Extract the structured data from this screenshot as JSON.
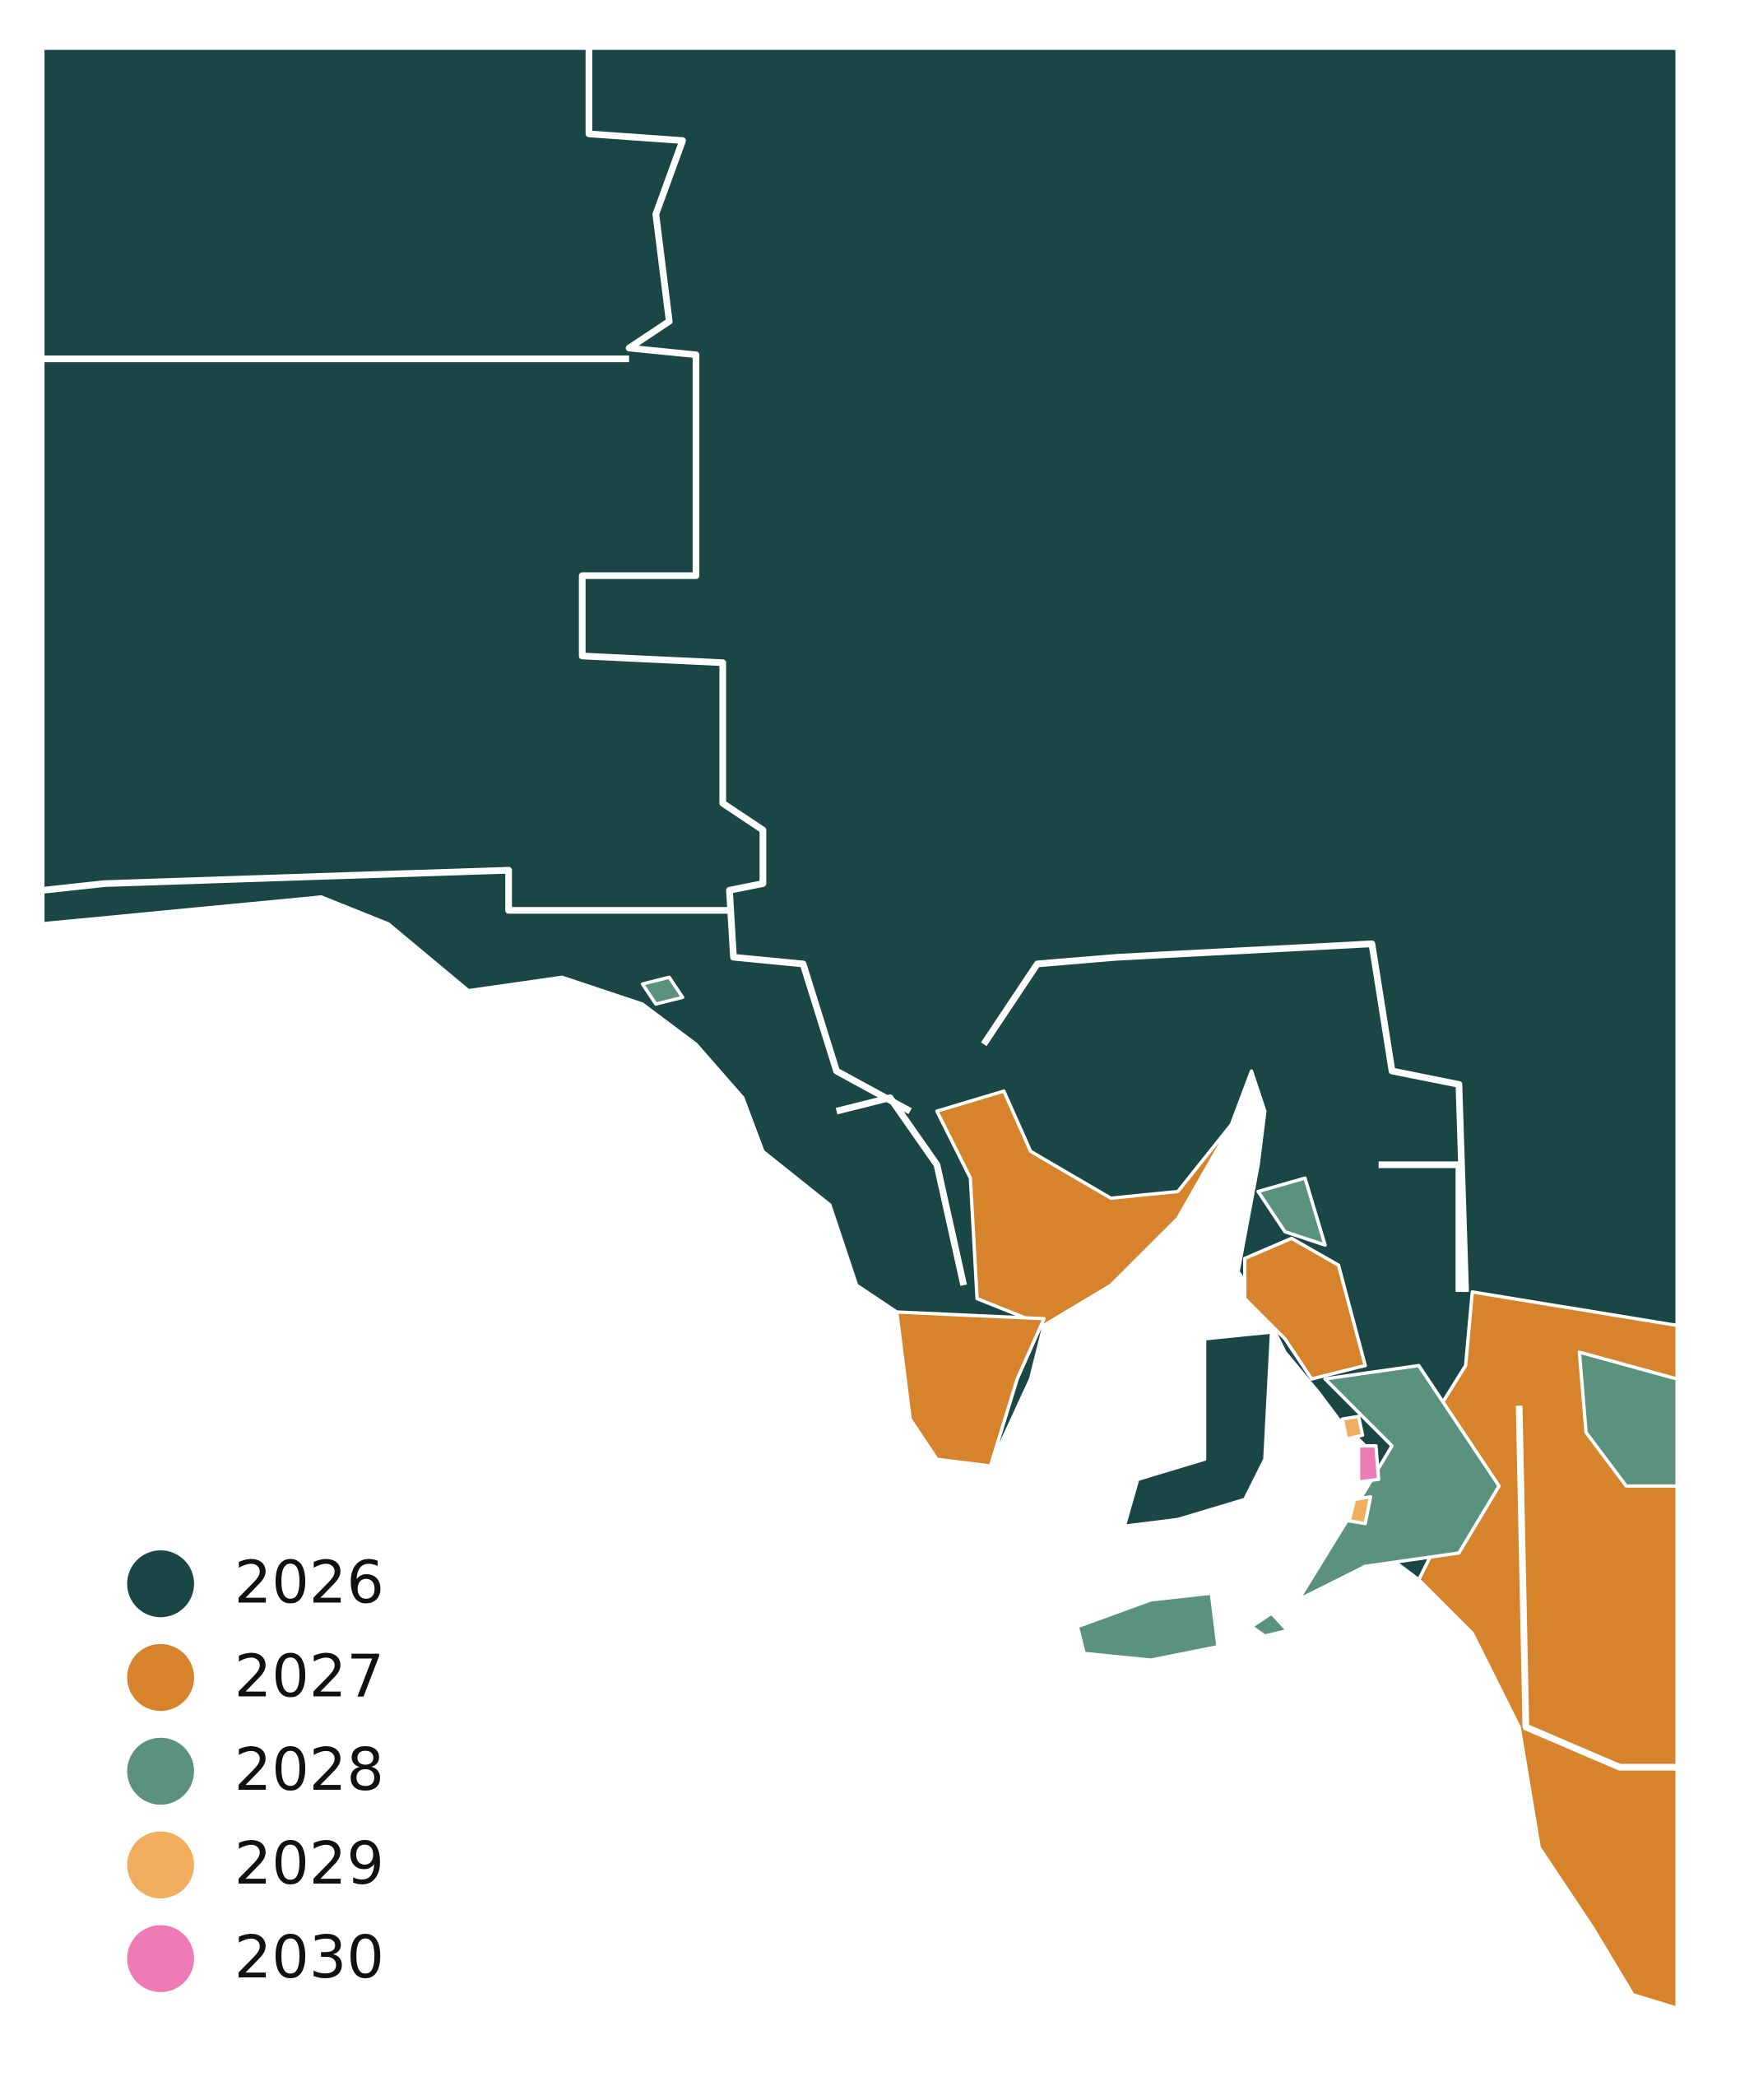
{
  "legend": {
    "items": [
      {
        "label": "2026",
        "color": "#1b4646"
      },
      {
        "label": "2027",
        "color": "#d6832b"
      },
      {
        "label": "2028",
        "color": "#5b927e"
      },
      {
        "label": "2029",
        "color": "#f0ae5e"
      },
      {
        "label": "2030",
        "color": "#ee7bb5"
      }
    ]
  }
}
